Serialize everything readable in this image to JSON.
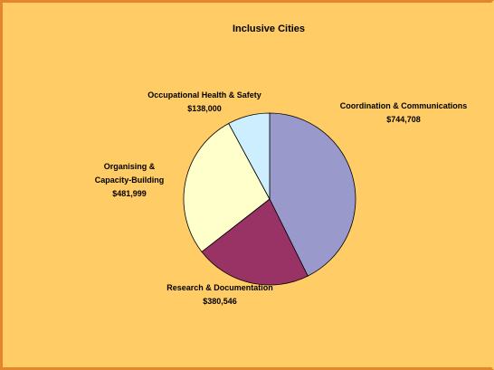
{
  "chart_data": {
    "type": "pie",
    "title": "Inclusive Cities",
    "categories": [
      "Coordination & Communications",
      "Research & Documentation",
      "Organising & Capacity-Building",
      "Occupational Health & Safety"
    ],
    "values": [
      744708,
      380546,
      481999,
      138000
    ],
    "value_labels": [
      "$744,708",
      "$380,546",
      "$481,999",
      "$138,000"
    ],
    "colors": [
      "#9999cc",
      "#993366",
      "#ffffcc",
      "#cceeff"
    ]
  }
}
